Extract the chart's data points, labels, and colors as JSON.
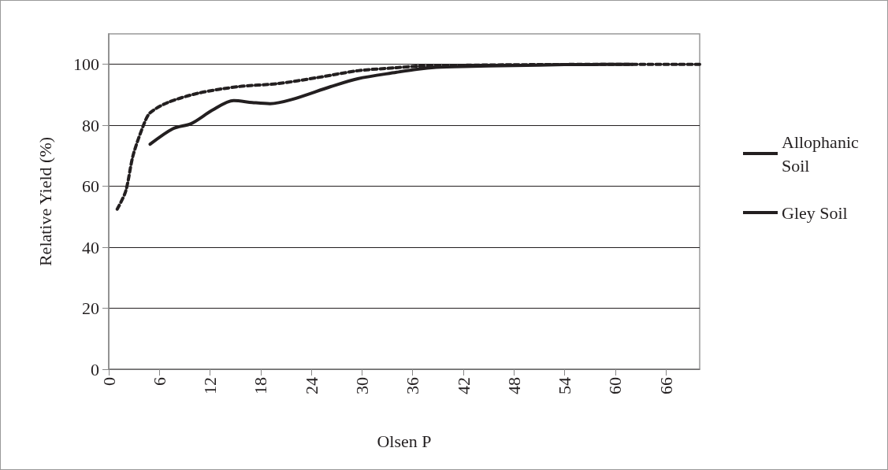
{
  "chart_data": {
    "type": "line",
    "xlabel": "Olsen P",
    "ylabel": "Relative Yield (%)",
    "xlim": [
      0,
      70
    ],
    "xticks": [
      0,
      6,
      12,
      18,
      24,
      30,
      36,
      42,
      48,
      54,
      60,
      66
    ],
    "ylim": [
      0,
      110
    ],
    "yticks": [
      0,
      20,
      40,
      60,
      80,
      100
    ],
    "grid": "y",
    "legend": "right",
    "marker": "none",
    "series": [
      {
        "name": "Allophanic Soil",
        "color": "#231f20",
        "line_style": "solid",
        "x": [
          4.9,
          7.6,
          9.8,
          12.3,
          14.8,
          17,
          19.1,
          21.6,
          26.3,
          29.5,
          34.1,
          36.5,
          38.8,
          42,
          48,
          54,
          62
        ],
        "values": [
          73.8,
          78.9,
          80.6,
          85,
          88.1,
          87.5,
          87.1,
          88.4,
          92.7,
          95.3,
          97.4,
          98.4,
          99,
          99.3,
          99.6,
          99.9,
          100
        ]
      },
      {
        "name": "Gley Soil",
        "color": "#231f20",
        "line_style": "dashed",
        "x": [
          1,
          2,
          2.9,
          4.2,
          4.9,
          7,
          10.7,
          15.4,
          20.1,
          24.8,
          29.5,
          34.1,
          36.5,
          42,
          50,
          60,
          70
        ],
        "values": [
          52.5,
          58.3,
          70.3,
          80.6,
          84.1,
          87.5,
          90.6,
          92.7,
          93.7,
          95.7,
          97.9,
          98.9,
          99.4,
          99.7,
          99.9,
          100,
          100
        ]
      }
    ]
  }
}
